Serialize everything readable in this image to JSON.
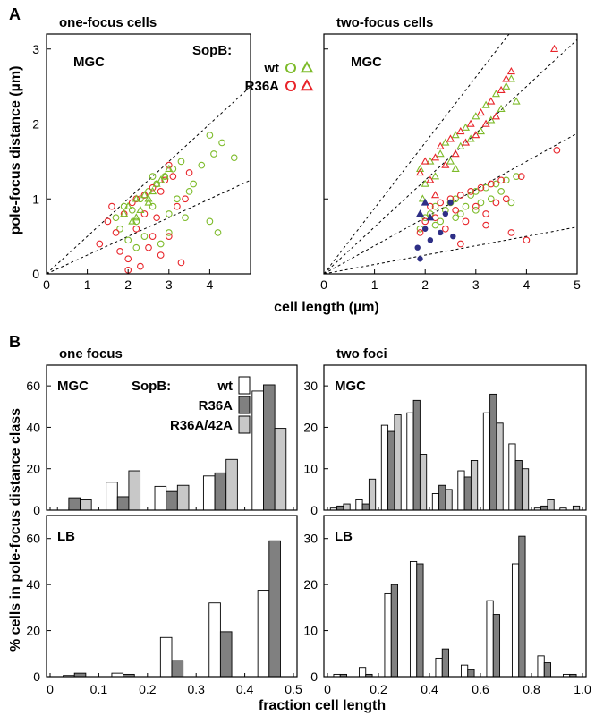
{
  "figure": {
    "panel_a_letter": "A",
    "panel_b_letter": "B",
    "ylabel_a": "pole-focus distance (µm)",
    "xlabel_a": "cell length (µm)",
    "ylabel_b": "% cells in pole-focus distance class",
    "xlabel_b": "fraction cell length",
    "colors": {
      "wt": "#7dbb2a",
      "r36a": "#e8242a",
      "blue": "#2e2f86",
      "dark_bar": "#808080",
      "light_bar": "#c8c8c8"
    }
  },
  "chart_data": [
    {
      "id": "A_one_focus",
      "type": "scatter",
      "title": "one-focus cells",
      "inner_label": "MGC",
      "xlabel": "cell length (µm)",
      "ylabel": "pole-focus distance (µm)",
      "xlim": [
        0,
        5
      ],
      "ylim": [
        0,
        3.2
      ],
      "xticks": [
        "0",
        "1",
        "2",
        "3",
        "4"
      ],
      "yticks": [
        "0",
        "1",
        "2",
        "3"
      ],
      "legend": {
        "title": "SopB:",
        "entries": [
          {
            "name": "wt",
            "color": "#7dbb2a"
          },
          {
            "name": "R36A",
            "color": "#e8242a"
          }
        ],
        "placement": "top-right"
      },
      "guide_lines": [
        {
          "slope": 0.5
        },
        {
          "slope": 0.25
        }
      ],
      "series": [
        {
          "name": "wt",
          "marker": "circle",
          "color": "#7dbb2a",
          "points": [
            [
              1.7,
              0.75
            ],
            [
              1.8,
              0.6
            ],
            [
              1.9,
              0.9
            ],
            [
              2.0,
              0.45
            ],
            [
              2.1,
              0.85
            ],
            [
              2.2,
              0.7
            ],
            [
              2.3,
              1.0
            ],
            [
              2.4,
              0.5
            ],
            [
              2.5,
              1.1
            ],
            [
              2.6,
              0.9
            ],
            [
              2.7,
              1.2
            ],
            [
              2.8,
              0.4
            ],
            [
              2.9,
              1.3
            ],
            [
              3.0,
              0.8
            ],
            [
              3.1,
              1.4
            ],
            [
              3.2,
              1.0
            ],
            [
              3.3,
              1.5
            ],
            [
              3.4,
              0.75
            ],
            [
              3.6,
              1.2
            ],
            [
              3.8,
              1.45
            ],
            [
              4.0,
              0.7
            ],
            [
              4.1,
              1.6
            ],
            [
              4.2,
              0.55
            ],
            [
              4.3,
              1.75
            ],
            [
              4.6,
              1.55
            ],
            [
              4.0,
              1.85
            ],
            [
              3.5,
              1.1
            ],
            [
              2.2,
              0.35
            ],
            [
              2.6,
              1.3
            ],
            [
              3.0,
              0.55
            ]
          ]
        },
        {
          "name": "R36A",
          "marker": "circle",
          "color": "#e8242a",
          "points": [
            [
              1.3,
              0.4
            ],
            [
              1.5,
              0.7
            ],
            [
              1.7,
              0.55
            ],
            [
              1.8,
              0.3
            ],
            [
              1.9,
              0.8
            ],
            [
              2.0,
              0.2
            ],
            [
              2.1,
              0.95
            ],
            [
              2.2,
              0.6
            ],
            [
              2.3,
              0.1
            ],
            [
              2.4,
              1.05
            ],
            [
              2.5,
              0.35
            ],
            [
              2.6,
              1.15
            ],
            [
              2.7,
              0.75
            ],
            [
              2.8,
              0.25
            ],
            [
              2.9,
              1.25
            ],
            [
              3.0,
              0.5
            ],
            [
              3.1,
              1.3
            ],
            [
              3.2,
              0.9
            ],
            [
              3.3,
              0.15
            ],
            [
              3.5,
              1.35
            ],
            [
              2.0,
              0.05
            ],
            [
              2.4,
              0.8
            ],
            [
              2.8,
              1.1
            ],
            [
              3.4,
              1.0
            ],
            [
              1.6,
              0.9
            ],
            [
              2.2,
              1.0
            ],
            [
              3.0,
              1.45
            ],
            [
              2.6,
              0.5
            ]
          ]
        },
        {
          "name": "wt",
          "marker": "triangle",
          "color": "#7dbb2a",
          "points": [
            [
              1.9,
              0.8
            ],
            [
              2.0,
              0.9
            ],
            [
              2.1,
              0.7
            ],
            [
              2.2,
              1.0
            ],
            [
              2.3,
              0.85
            ],
            [
              2.4,
              1.05
            ],
            [
              2.5,
              0.95
            ],
            [
              2.6,
              1.1
            ],
            [
              2.7,
              1.2
            ],
            [
              2.8,
              1.25
            ],
            [
              2.9,
              1.3
            ],
            [
              3.0,
              1.4
            ],
            [
              2.2,
              0.75
            ],
            [
              2.5,
              1.0
            ]
          ]
        }
      ]
    },
    {
      "id": "A_two_focus",
      "type": "scatter",
      "title": "two-focus cells",
      "inner_label": "MGC",
      "xlabel": "cell length (µm)",
      "ylabel": "",
      "xlim": [
        0,
        5
      ],
      "ylim": [
        0,
        3.2
      ],
      "xticks": [
        "0",
        "1",
        "2",
        "3",
        "4",
        "5"
      ],
      "yticks": [],
      "guide_lines": [
        {
          "slope": 0.875
        },
        {
          "slope": 0.625
        },
        {
          "slope": 0.375
        },
        {
          "slope": 0.125
        }
      ],
      "series": [
        {
          "name": "wt",
          "marker": "circle",
          "color": "#7dbb2a",
          "points": [
            [
              1.9,
              0.6
            ],
            [
              2.0,
              0.75
            ],
            [
              2.1,
              0.8
            ],
            [
              2.2,
              0.9
            ],
            [
              2.3,
              0.7
            ],
            [
              2.4,
              0.85
            ],
            [
              2.5,
              0.95
            ],
            [
              2.6,
              1.0
            ],
            [
              2.7,
              0.8
            ],
            [
              2.8,
              0.9
            ],
            [
              2.9,
              1.05
            ],
            [
              3.0,
              1.1
            ],
            [
              3.1,
              0.95
            ],
            [
              3.2,
              1.15
            ],
            [
              3.3,
              1.0
            ],
            [
              3.4,
              1.2
            ],
            [
              3.5,
              1.1
            ],
            [
              3.6,
              1.25
            ],
            [
              3.7,
              0.95
            ],
            [
              3.8,
              1.3
            ],
            [
              2.2,
              0.65
            ],
            [
              2.6,
              0.75
            ],
            [
              3.0,
              0.85
            ]
          ]
        },
        {
          "name": "R36A",
          "marker": "circle",
          "color": "#e8242a",
          "points": [
            [
              1.9,
              0.55
            ],
            [
              2.0,
              0.7
            ],
            [
              2.1,
              0.9
            ],
            [
              2.2,
              0.75
            ],
            [
              2.3,
              0.95
            ],
            [
              2.4,
              0.6
            ],
            [
              2.5,
              1.0
            ],
            [
              2.6,
              0.85
            ],
            [
              2.7,
              1.05
            ],
            [
              2.8,
              0.7
            ],
            [
              2.9,
              1.1
            ],
            [
              3.0,
              0.9
            ],
            [
              3.1,
              1.15
            ],
            [
              3.2,
              0.8
            ],
            [
              3.3,
              1.2
            ],
            [
              3.4,
              0.95
            ],
            [
              3.5,
              1.25
            ],
            [
              3.6,
              1.0
            ],
            [
              3.7,
              0.55
            ],
            [
              3.9,
              1.3
            ],
            [
              4.0,
              0.45
            ],
            [
              4.6,
              1.65
            ],
            [
              2.7,
              0.4
            ],
            [
              3.2,
              0.65
            ]
          ]
        },
        {
          "name": "wt",
          "marker": "triangle",
          "color": "#7dbb2a",
          "points": [
            [
              1.9,
              1.4
            ],
            [
              2.0,
              1.2
            ],
            [
              2.1,
              1.5
            ],
            [
              2.2,
              1.3
            ],
            [
              2.3,
              1.6
            ],
            [
              2.4,
              1.75
            ],
            [
              2.5,
              1.5
            ],
            [
              2.6,
              1.85
            ],
            [
              2.7,
              1.7
            ],
            [
              2.8,
              1.95
            ],
            [
              2.9,
              1.8
            ],
            [
              3.0,
              2.1
            ],
            [
              3.1,
              1.9
            ],
            [
              3.2,
              2.25
            ],
            [
              3.3,
              2.05
            ],
            [
              3.4,
              2.4
            ],
            [
              3.5,
              2.2
            ],
            [
              3.6,
              2.5
            ],
            [
              3.7,
              2.6
            ],
            [
              3.8,
              2.3
            ],
            [
              1.95,
              1.0
            ],
            [
              2.6,
              1.4
            ]
          ]
        },
        {
          "name": "R36A",
          "marker": "triangle",
          "color": "#e8242a",
          "points": [
            [
              1.9,
              1.35
            ],
            [
              2.0,
              1.5
            ],
            [
              2.1,
              1.25
            ],
            [
              2.2,
              1.55
            ],
            [
              2.3,
              1.7
            ],
            [
              2.4,
              1.45
            ],
            [
              2.5,
              1.8
            ],
            [
              2.6,
              1.6
            ],
            [
              2.7,
              1.9
            ],
            [
              2.8,
              1.75
            ],
            [
              2.9,
              2.0
            ],
            [
              3.0,
              1.85
            ],
            [
              3.1,
              2.15
            ],
            [
              3.2,
              2.0
            ],
            [
              3.3,
              2.3
            ],
            [
              3.4,
              2.1
            ],
            [
              3.5,
              2.45
            ],
            [
              3.6,
              2.6
            ],
            [
              3.7,
              2.7
            ],
            [
              4.55,
              3.0
            ],
            [
              2.2,
              1.05
            ]
          ]
        },
        {
          "name": "",
          "marker": "dot",
          "color": "#2e2f86",
          "points": [
            [
              1.85,
              0.35
            ],
            [
              1.9,
              0.2
            ],
            [
              2.0,
              0.6
            ],
            [
              2.1,
              0.45
            ],
            [
              2.3,
              0.55
            ],
            [
              2.4,
              0.8
            ],
            [
              2.5,
              0.95
            ],
            [
              2.55,
              0.5
            ]
          ]
        },
        {
          "name": "",
          "marker": "triangle-filled",
          "color": "#2e2f86",
          "points": [
            [
              1.9,
              0.8
            ],
            [
              2.0,
              0.95
            ],
            [
              2.1,
              0.75
            ]
          ]
        }
      ]
    },
    {
      "id": "B_one_focus_MGC",
      "type": "bar",
      "title": "one focus",
      "inner_label": "MGC",
      "legend": {
        "title": "SopB:",
        "entries": [
          "wt",
          "R36A",
          "R36A/42A"
        ]
      },
      "xlim": [
        0,
        0.5
      ],
      "ylim": [
        0,
        70
      ],
      "yticks": [
        "0",
        "20",
        "40",
        "60"
      ],
      "categories": [
        0.05,
        0.15,
        0.25,
        0.35,
        0.45
      ],
      "series": [
        {
          "name": "wt",
          "values": [
            1.5,
            13.5,
            11.5,
            16.5,
            57.5
          ]
        },
        {
          "name": "R36A",
          "values": [
            6,
            6.5,
            9,
            18,
            60.5
          ]
        },
        {
          "name": "R36A/42A",
          "values": [
            5,
            19,
            12,
            24.5,
            39.5
          ]
        }
      ]
    },
    {
      "id": "B_two_foci_MGC",
      "type": "bar",
      "title": "two foci",
      "inner_label": "MGC",
      "xlim": [
        0,
        1
      ],
      "ylim": [
        0,
        35
      ],
      "yticks": [
        "0",
        "10",
        "20",
        "30"
      ],
      "categories": [
        0.05,
        0.15,
        0.25,
        0.35,
        0.45,
        0.55,
        0.65,
        0.75,
        0.85,
        0.95
      ],
      "series": [
        {
          "name": "wt",
          "values": [
            0.5,
            2.5,
            20.5,
            23.5,
            4,
            9.5,
            23.5,
            16,
            0.5,
            0.5
          ]
        },
        {
          "name": "R36A",
          "values": [
            1,
            1.5,
            19,
            26.5,
            6,
            8,
            28,
            12,
            1,
            0
          ]
        },
        {
          "name": "R36A/42A",
          "values": [
            1.5,
            7.5,
            23,
            13.5,
            5,
            12,
            21,
            10,
            2.5,
            1
          ]
        }
      ]
    },
    {
      "id": "B_one_focus_LB",
      "type": "bar",
      "inner_label": "LB",
      "xlabel": "fraction cell length",
      "xlim": [
        0,
        0.5
      ],
      "ylim": [
        0,
        70
      ],
      "xticks": [
        "0",
        "0.1",
        "0.2",
        "0.3",
        "0.4",
        "0.5"
      ],
      "yticks": [
        "0",
        "20",
        "40",
        "60"
      ],
      "categories": [
        0.05,
        0.15,
        0.25,
        0.35,
        0.45
      ],
      "series": [
        {
          "name": "wt",
          "values": [
            0.5,
            1.5,
            17,
            32,
            37.5
          ]
        },
        {
          "name": "R36A",
          "values": [
            1.5,
            1,
            7,
            19.5,
            59
          ]
        }
      ]
    },
    {
      "id": "B_two_foci_LB",
      "type": "bar",
      "inner_label": "LB",
      "xlim": [
        0,
        1
      ],
      "ylim": [
        0,
        35
      ],
      "xticks": [
        "0",
        "0.2",
        "0.4",
        "0.6",
        "0.8",
        "1.0"
      ],
      "yticks": [
        "0",
        "10",
        "20",
        "30"
      ],
      "categories": [
        0.05,
        0.15,
        0.25,
        0.35,
        0.45,
        0.55,
        0.65,
        0.75,
        0.85,
        0.95
      ],
      "series": [
        {
          "name": "wt",
          "values": [
            0.5,
            2,
            18,
            25,
            4,
            2.5,
            16.5,
            24.5,
            4.5,
            0.5
          ]
        },
        {
          "name": "R36A",
          "values": [
            0.5,
            0.5,
            20,
            24.5,
            6,
            1.5,
            13.5,
            30.5,
            3,
            0.5
          ]
        }
      ]
    }
  ]
}
